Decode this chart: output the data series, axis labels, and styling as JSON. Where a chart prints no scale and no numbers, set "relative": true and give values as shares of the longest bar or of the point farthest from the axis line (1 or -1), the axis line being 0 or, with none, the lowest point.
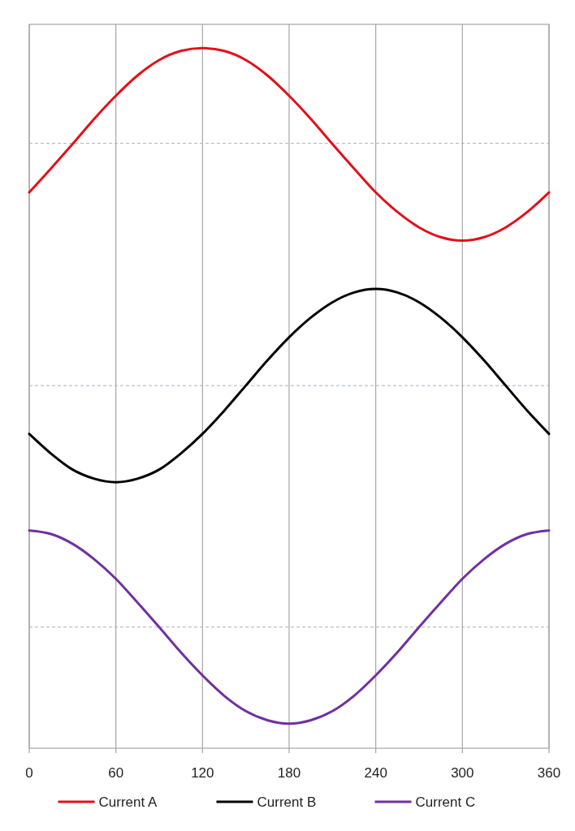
{
  "chart_data": {
    "type": "line",
    "relative": true,
    "x": [
      0,
      15,
      30,
      45,
      60,
      75,
      90,
      105,
      120,
      135,
      150,
      165,
      180,
      195,
      210,
      225,
      240,
      255,
      270,
      285,
      300,
      315,
      330,
      345,
      360
    ],
    "xlim": [
      0,
      360
    ],
    "xticks": [
      0,
      60,
      120,
      180,
      240,
      300,
      360
    ],
    "grid": "x",
    "legend": "bottom",
    "marker": "none",
    "line_style": "solid",
    "ref_lines": [
      {
        "axis": "y",
        "value": 0.864,
        "color": "#a6b0bc",
        "line_style": "dashed"
      },
      {
        "axis": "y",
        "value": 0.518,
        "color": "#a6b0bc",
        "line_style": "dashed"
      },
      {
        "axis": "y",
        "value": 0.173,
        "color": "#a6b0bc",
        "line_style": "dashed"
      }
    ],
    "series": [
      {
        "name": "Current A",
        "color": "#e3101a",
        "values": [
          0.794,
          0.828,
          0.863,
          0.899,
          0.932,
          0.961,
          0.983,
          0.996,
          1,
          0.996,
          0.983,
          0.961,
          0.932,
          0.899,
          0.863,
          0.828,
          0.794,
          0.766,
          0.744,
          0.73,
          0.725,
          0.73,
          0.744,
          0.766,
          0.794
        ]
      },
      {
        "name": "Current B",
        "color": "#000000",
        "values": [
          0.449,
          0.421,
          0.398,
          0.385,
          0.38,
          0.385,
          0.398,
          0.421,
          0.449,
          0.482,
          0.518,
          0.554,
          0.587,
          0.615,
          0.637,
          0.651,
          0.656,
          0.651,
          0.637,
          0.615,
          0.587,
          0.554,
          0.518,
          0.482,
          0.449
        ]
      },
      {
        "name": "Current C",
        "color": "#7030a0",
        "values": [
          0.311,
          0.306,
          0.292,
          0.27,
          0.242,
          0.208,
          0.173,
          0.137,
          0.104,
          0.075,
          0.053,
          0.04,
          0.035,
          0.04,
          0.053,
          0.075,
          0.104,
          0.137,
          0.173,
          0.208,
          0.242,
          0.27,
          0.292,
          0.306,
          0.311
        ]
      }
    ]
  }
}
